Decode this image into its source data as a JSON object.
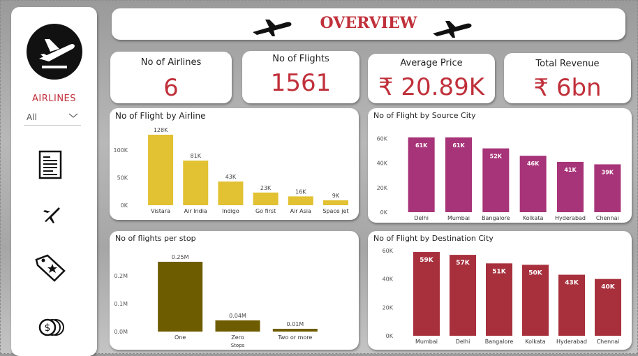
{
  "sidebar": {
    "brand": "AIRLINES",
    "filter_value": "All"
  },
  "header": {
    "title": "OVERVIEW"
  },
  "kpis": [
    {
      "label": "No of Airlines",
      "value": "6"
    },
    {
      "label": "No of Flights",
      "value": "1561"
    },
    {
      "label": "Average Price",
      "value": "₹ 20.89K"
    },
    {
      "label": "Total Revenue",
      "value": "₹ 6bn"
    }
  ],
  "colors": {
    "accent": "#c0303a",
    "airline": "#e2c132",
    "source": "#a73378",
    "stops": "#6e5c00",
    "destination": "#a7303c"
  },
  "chart_data": [
    {
      "type": "bar",
      "title": "No of Flight by Airline",
      "categories": [
        "Vistara",
        "Air India",
        "Indigo",
        "Go first",
        "Air Asia",
        "Space jet"
      ],
      "values": [
        128000,
        81000,
        43000,
        23000,
        16000,
        9000
      ],
      "data_labels": [
        "128K",
        "81K",
        "43K",
        "23K",
        "16K",
        "9K"
      ],
      "yticks": [
        "0K",
        "50K",
        "100K"
      ],
      "ytick_values": [
        0,
        50000,
        100000
      ],
      "ylim": [
        0,
        128000
      ]
    },
    {
      "type": "bar",
      "title": "No of Flight by Source City",
      "categories": [
        "Delhi",
        "Mumbai",
        "Bangalore",
        "Kolkata",
        "Hyderabad",
        "Chennai"
      ],
      "values": [
        61000,
        61000,
        52000,
        46000,
        41000,
        39000
      ],
      "data_labels": [
        "61K",
        "61K",
        "52K",
        "46K",
        "41K",
        "39K"
      ],
      "yticks": [
        "0K",
        "20K",
        "40K",
        "60K"
      ],
      "ytick_values": [
        0,
        20000,
        40000,
        60000
      ],
      "ylim": [
        0,
        62000
      ]
    },
    {
      "type": "bar",
      "title": "No of flights per stop",
      "categories": [
        "One",
        "Zero",
        "Two or more"
      ],
      "values": [
        0.25,
        0.04,
        0.01
      ],
      "data_labels": [
        "0.25M",
        "0.04M",
        "0.01M"
      ],
      "yticks": [
        "0.0M",
        "0.1M",
        "0.2M"
      ],
      "ytick_values": [
        0,
        0.1,
        0.2
      ],
      "ylim": [
        0,
        0.25
      ],
      "xlabel": "Stops"
    },
    {
      "type": "bar",
      "title": "No of Flight by Destination City",
      "categories": [
        "Mumbai",
        "Delhi",
        "Bangalore",
        "Kolkata",
        "Hyderabad",
        "Chennai"
      ],
      "values": [
        59000,
        57000,
        51000,
        50000,
        43000,
        40000
      ],
      "data_labels": [
        "59K",
        "57K",
        "51K",
        "50K",
        "43K",
        "40K"
      ],
      "yticks": [
        "0K",
        "20K",
        "40K",
        "60K"
      ],
      "ytick_values": [
        0,
        20000,
        40000,
        60000
      ],
      "ylim": [
        0,
        60000
      ]
    }
  ]
}
